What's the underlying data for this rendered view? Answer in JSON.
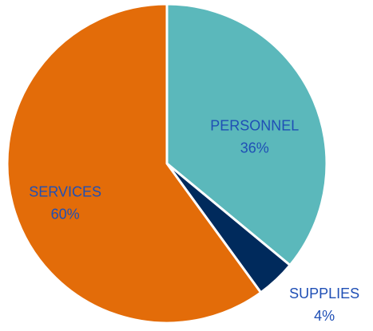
{
  "chart_data": {
    "type": "pie",
    "categories": [
      "PERSONNEL",
      "SUPPLIES",
      "SERVICES"
    ],
    "values": [
      36,
      4,
      60
    ],
    "value_labels": [
      "36%",
      "4%",
      "60%"
    ],
    "colors": [
      "#5bb8bb",
      "#002a5c",
      "#e36c09"
    ],
    "label_color": "#1f4fb5"
  }
}
